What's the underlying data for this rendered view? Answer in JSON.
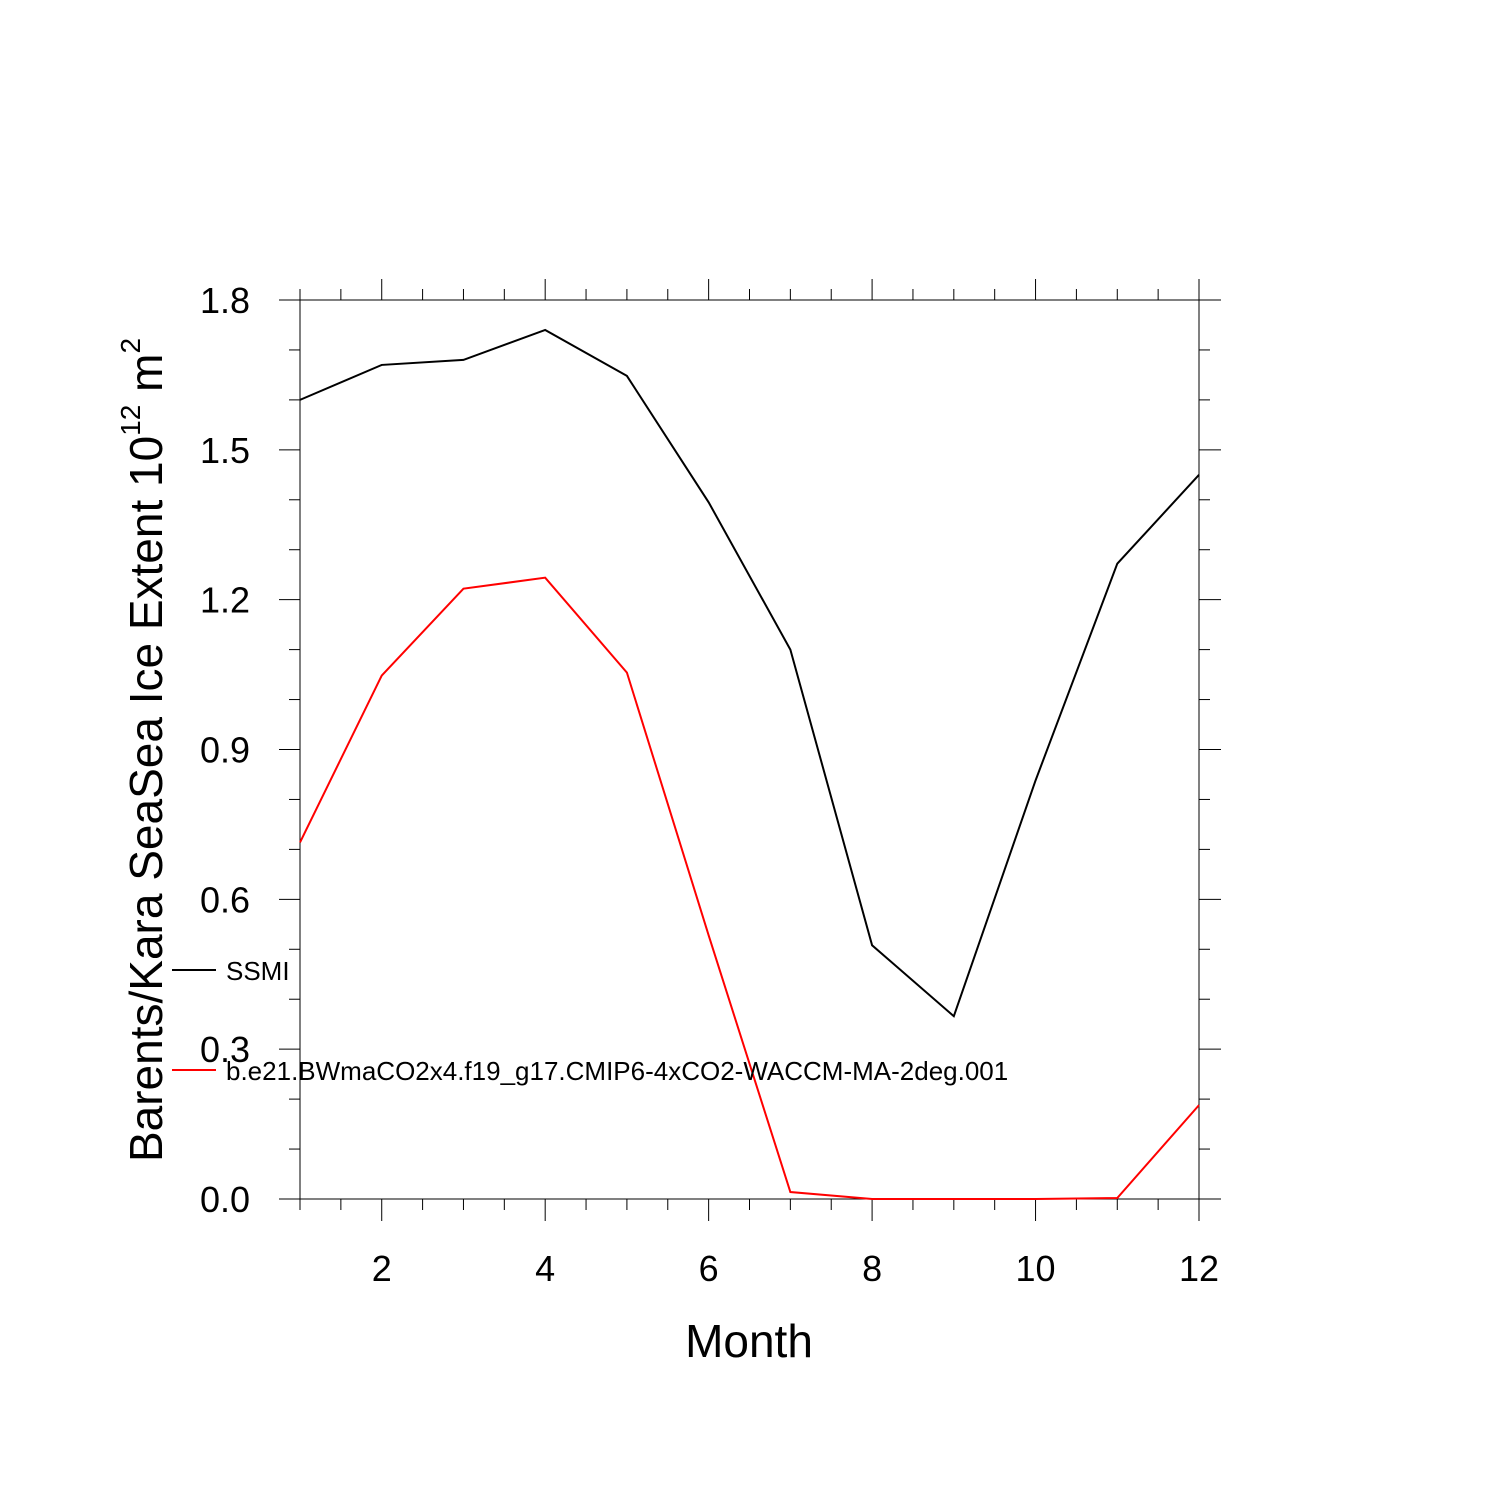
{
  "chart_data": {
    "type": "line",
    "xlabel": "Month",
    "ylabel": {
      "text": "Barents/Kara SeaSea Ice Extent 10",
      "sup1": "12",
      "unit": " m",
      "sup2": "2"
    },
    "x": [
      1,
      2,
      3,
      4,
      5,
      6,
      7,
      8,
      9,
      10,
      11,
      12
    ],
    "series": [
      {
        "name": "SSMI",
        "color": "#000000",
        "values": [
          1.6,
          1.67,
          1.68,
          1.74,
          1.648,
          1.395,
          1.1,
          0.508,
          0.366,
          0.838,
          1.272,
          1.45
        ]
      },
      {
        "name": "b.e21.BWmaCO2x4.f19_g17.CMIP6-4xCO2-WACCM-MA-2deg.001",
        "color": "#ff0000",
        "values": [
          0.714,
          1.048,
          1.222,
          1.244,
          1.054,
          0.528,
          0.014,
          0.0,
          0.0,
          0.0,
          0.002,
          0.188
        ]
      }
    ],
    "xlim": [
      1,
      12
    ],
    "ylim": [
      0,
      1.8
    ],
    "xticks": [
      2,
      4,
      6,
      8,
      10,
      12
    ],
    "yticks": [
      {
        "value": 0,
        "label": "0.0"
      },
      0.3,
      0.6,
      0.9,
      1.2,
      1.5,
      1.8
    ],
    "xminorticks": [
      1,
      1.5,
      2.5,
      3,
      3.5,
      4.5,
      5,
      5.5,
      6.5,
      7,
      7.5,
      8.5,
      9,
      9.5,
      10.5,
      11,
      11.5
    ],
    "yminorticks": [
      0.1,
      0.2,
      0.4,
      0.5,
      0.7,
      0.8,
      1.0,
      1.1,
      1.3,
      1.4,
      1.6,
      1.7
    ]
  }
}
